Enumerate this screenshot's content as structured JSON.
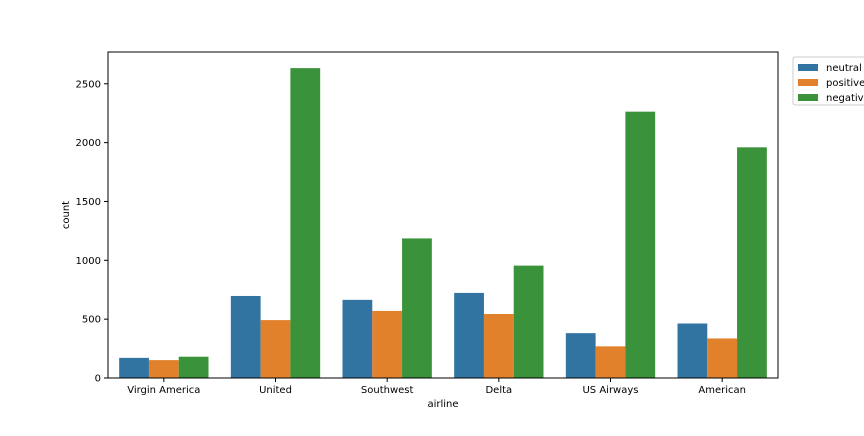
{
  "chart_data": {
    "type": "bar",
    "title": "",
    "xlabel": "airline",
    "ylabel": "count",
    "ylim": [
      0,
      2770
    ],
    "yticks": [
      0,
      500,
      1000,
      1500,
      2000,
      2500
    ],
    "grid": false,
    "legend_position": "upper right, outside the axes",
    "categories": [
      "Virgin America",
      "United",
      "Southwest",
      "Delta",
      "US Airways",
      "American"
    ],
    "series": [
      {
        "name": "neutral",
        "color": "#3274a1",
        "values": [
          171,
          697,
          664,
          723,
          381,
          463
        ]
      },
      {
        "name": "positive",
        "color": "#e1812c",
        "values": [
          152,
          492,
          570,
          544,
          269,
          336
        ]
      },
      {
        "name": "negative",
        "color": "#3a923a",
        "values": [
          181,
          2633,
          1186,
          955,
          2263,
          1960
        ]
      }
    ]
  }
}
